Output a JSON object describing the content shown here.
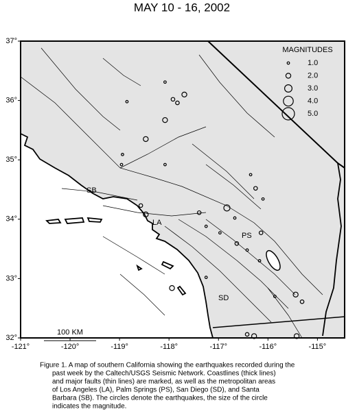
{
  "map": {
    "title": "MAY 10 - 16, 2002",
    "xlim": [
      -121,
      -114.45
    ],
    "ylim": [
      32,
      37
    ],
    "xticks": [
      {
        "value": -121,
        "label": "-121°"
      },
      {
        "value": -120,
        "label": "-120°"
      },
      {
        "value": -119,
        "label": "-119°"
      },
      {
        "value": -118,
        "label": "-118°"
      },
      {
        "value": -117,
        "label": "-117°"
      },
      {
        "value": -116,
        "label": "-116°"
      },
      {
        "value": -115,
        "label": "-115°"
      }
    ],
    "yticks": [
      {
        "value": 32,
        "label": "32°"
      },
      {
        "value": 33,
        "label": "33°"
      },
      {
        "value": 34,
        "label": "34°"
      },
      {
        "value": 35,
        "label": "35°"
      },
      {
        "value": 36,
        "label": "36°"
      },
      {
        "value": 37,
        "label": "37°"
      }
    ],
    "legend": {
      "title": "MAGNITUDES",
      "values": [
        1,
        2,
        3,
        4,
        5
      ],
      "value_labels": [
        "1.0",
        "2.0",
        "3.0",
        "4.0",
        "5.0"
      ]
    },
    "earthquakes": {
      "lon": [
        -118.08,
        -117.92,
        -117.69,
        -117.83,
        -118.08,
        -118.85,
        -118.47,
        -118.94,
        -118.96,
        -118.57,
        -118.47,
        -117.39,
        -116.83,
        -116.35,
        -116.25,
        -116.1,
        -116.67,
        -116.14,
        -116.63,
        -116.42,
        -116.17,
        -117.94,
        -115.86,
        -115.44,
        -115.31,
        -115.42,
        -116.42,
        -116.28,
        -117.25,
        -116.97,
        -118.08,
        -117.25
      ],
      "lat": [
        36.31,
        36.02,
        36.1,
        35.96,
        35.67,
        35.98,
        35.35,
        35.09,
        34.92,
        34.23,
        34.08,
        34.11,
        34.19,
        34.75,
        34.52,
        34.34,
        34.02,
        33.77,
        33.59,
        33.48,
        33.3,
        32.84,
        32.7,
        32.73,
        32.61,
        32.03,
        32.06,
        32.03,
        33.88,
        33.77,
        34.92,
        33.02
      ],
      "magnitude": [
        1,
        1.5,
        2,
        1.5,
        2,
        1,
        2,
        1,
        1,
        1.5,
        2,
        1.5,
        2.5,
        1,
        1.5,
        1,
        1,
        1.5,
        1.5,
        1,
        1,
        2,
        1,
        2,
        1.5,
        2,
        1.5,
        2,
        1,
        1,
        1,
        1
      ]
    },
    "place_labels": [
      "SB",
      "LA",
      "PS",
      "SD"
    ],
    "scale_label": "100 KM",
    "caption": [
      "Figure 1. A map of southern California showing the earthquakes recorded during the",
      "past week by the Caltech/USGS Seismic Network.  Coastlines (thick lines)",
      "and major faults (thin lines) are marked, as well as the metropolitan areas",
      "of Los Angeles (LA), Palm Springs (PS), San Diego (SD), and Santa",
      "Barbara (SB).  The circles denote the earthquakes, the size of the circle",
      "indicates the magnitude."
    ]
  }
}
